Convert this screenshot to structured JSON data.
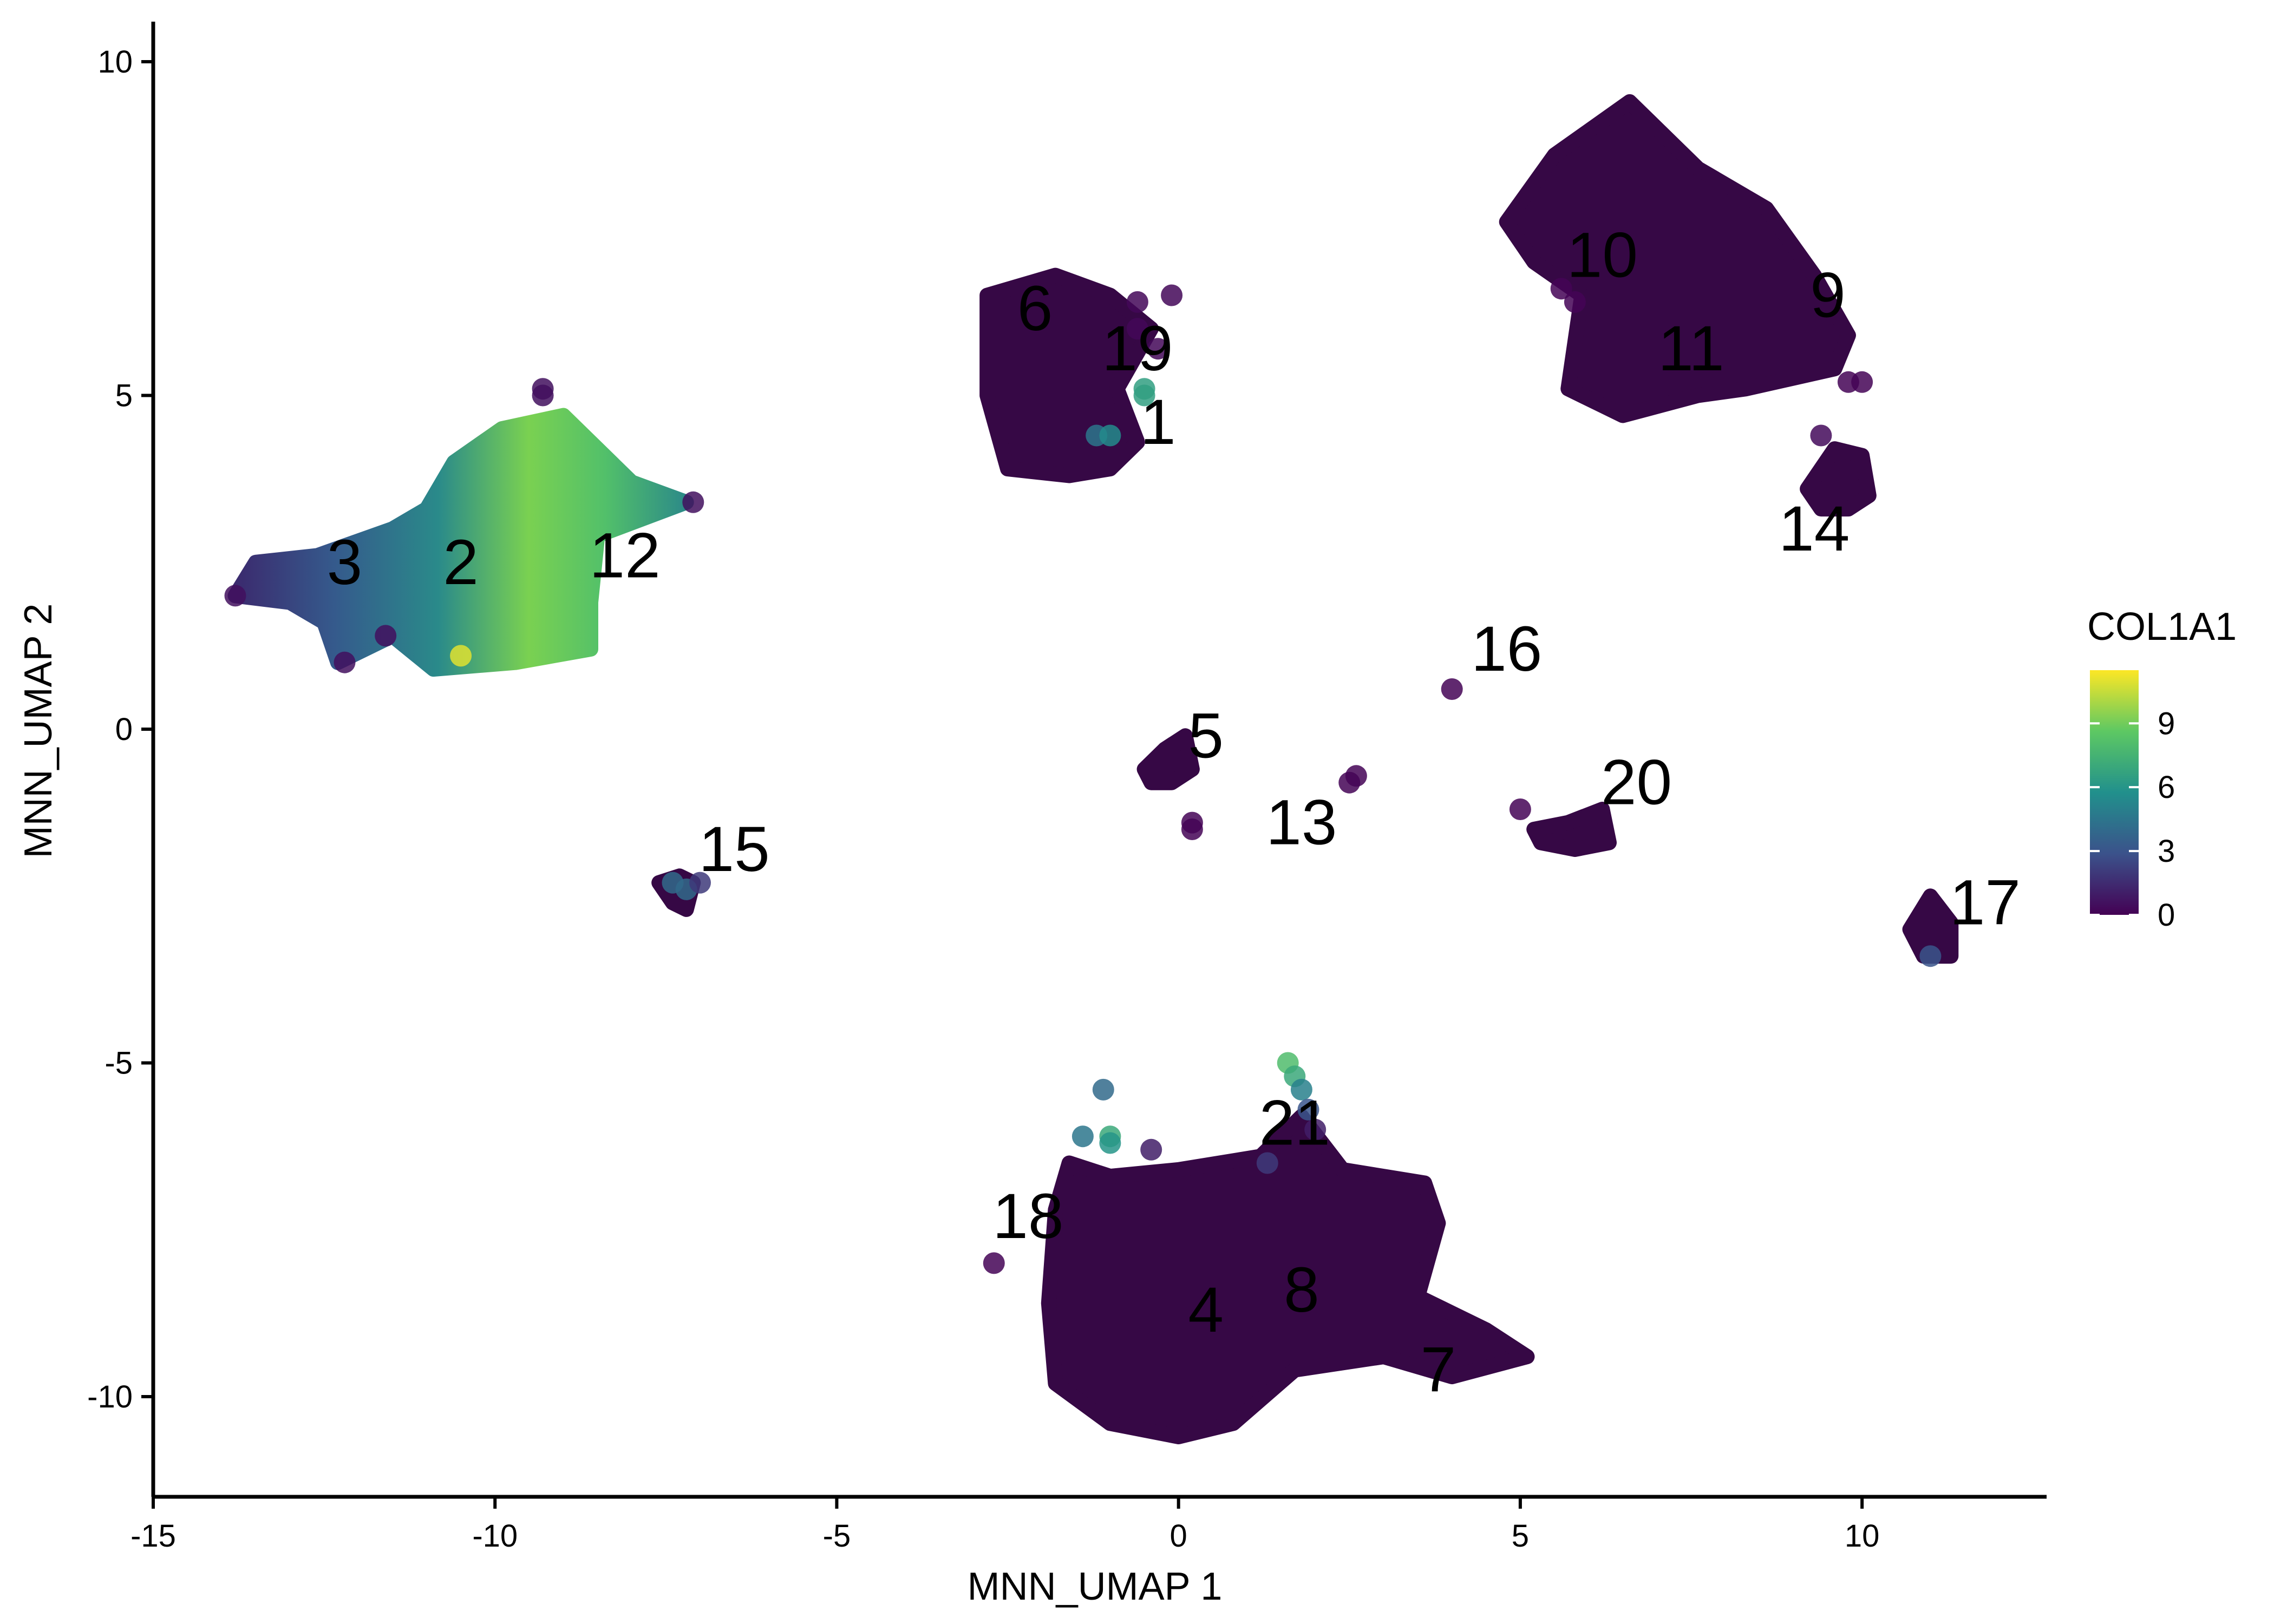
{
  "chart_data": {
    "type": "scatter",
    "xlabel": "MNN_UMAP 1",
    "ylabel": "MNN_UMAP 2",
    "xlim": [
      -15,
      12.7
    ],
    "ylim": [
      -11.5,
      10.6
    ],
    "x_ticks": [
      -15,
      -10,
      -5,
      0,
      5,
      10
    ],
    "y_ticks": [
      -10,
      -5,
      0,
      5,
      10
    ],
    "x_tick_labels": [
      "-15",
      "-10",
      "-5",
      "0",
      "5",
      "10"
    ],
    "y_tick_labels": [
      "-10",
      "-5",
      "0",
      "5",
      "10"
    ],
    "grid": false,
    "legend": {
      "title": "COL1A1",
      "placement": "right",
      "min": 0,
      "max": 11.5,
      "ticks": [
        0,
        3,
        6,
        9
      ],
      "tick_labels": [
        "0",
        "3",
        "6",
        "9"
      ],
      "colors": [
        "#440154",
        "#3b528b",
        "#21908c",
        "#5dc863",
        "#fde725"
      ]
    },
    "clusters": [
      {
        "label": "1",
        "x": -0.3,
        "y": 4.6,
        "expr": 0.5
      },
      {
        "label": "2",
        "x": -10.5,
        "y": 2.5,
        "expr": 8.0
      },
      {
        "label": "3",
        "x": -12.2,
        "y": 2.5,
        "expr": 2.5
      },
      {
        "label": "4",
        "x": 0.4,
        "y": -8.7,
        "expr": 0.1
      },
      {
        "label": "5",
        "x": 0.4,
        "y": -0.1,
        "expr": 0.1
      },
      {
        "label": "6",
        "x": -2.1,
        "y": 6.3,
        "expr": 0.1
      },
      {
        "label": "7",
        "x": 3.8,
        "y": -9.6,
        "expr": 0.1
      },
      {
        "label": "8",
        "x": 1.8,
        "y": -8.4,
        "expr": 0.1
      },
      {
        "label": "9",
        "x": 9.5,
        "y": 6.5,
        "expr": 0.1
      },
      {
        "label": "10",
        "x": 6.2,
        "y": 7.1,
        "expr": 0.1
      },
      {
        "label": "11",
        "x": 7.5,
        "y": 5.7,
        "expr": 0.1
      },
      {
        "label": "12",
        "x": -8.1,
        "y": 2.6,
        "expr": 7.0
      },
      {
        "label": "13",
        "x": 1.8,
        "y": -1.4,
        "expr": 0.1
      },
      {
        "label": "14",
        "x": 9.3,
        "y": 3.0,
        "expr": 0.1
      },
      {
        "label": "15",
        "x": -6.5,
        "y": -1.8,
        "expr": 3.0
      },
      {
        "label": "16",
        "x": 4.8,
        "y": 1.2,
        "expr": 0.1
      },
      {
        "label": "17",
        "x": 11.8,
        "y": -2.6,
        "expr": 0.1
      },
      {
        "label": "18",
        "x": -2.2,
        "y": -7.3,
        "expr": 0.1
      },
      {
        "label": "19",
        "x": -0.6,
        "y": 5.7,
        "expr": 0.3
      },
      {
        "label": "20",
        "x": 6.7,
        "y": -0.8,
        "expr": 0.1
      },
      {
        "label": "21",
        "x": 1.7,
        "y": -5.9,
        "expr": 1.0
      }
    ],
    "regions": [
      {
        "cluster": "2/3/12",
        "color_mode": "gradient_col1a1",
        "polygon": [
          [
            -13.8,
            2.0
          ],
          [
            -13.5,
            2.5
          ],
          [
            -12.6,
            2.6
          ],
          [
            -11.5,
            3.0
          ],
          [
            -11.0,
            3.3
          ],
          [
            -10.6,
            4.0
          ],
          [
            -9.9,
            4.5
          ],
          [
            -9.0,
            4.7
          ],
          [
            -8.0,
            3.7
          ],
          [
            -7.2,
            3.4
          ],
          [
            -8.5,
            2.9
          ],
          [
            -8.6,
            1.9
          ],
          [
            -8.6,
            1.2
          ],
          [
            -9.7,
            1.0
          ],
          [
            -10.9,
            0.9
          ],
          [
            -11.5,
            1.4
          ],
          [
            -12.3,
            1.0
          ],
          [
            -12.5,
            1.6
          ],
          [
            -13.0,
            1.9
          ]
        ]
      },
      {
        "cluster": "6/19/1",
        "polygon": [
          [
            -2.8,
            5.0
          ],
          [
            -2.8,
            6.5
          ],
          [
            -1.8,
            6.8
          ],
          [
            -1.0,
            6.5
          ],
          [
            -0.4,
            6.0
          ],
          [
            -0.9,
            5.1
          ],
          [
            -0.6,
            4.3
          ],
          [
            -1.0,
            3.9
          ],
          [
            -1.6,
            3.8
          ],
          [
            -2.5,
            3.9
          ]
        ]
      },
      {
        "cluster": "10/11/9",
        "polygon": [
          [
            4.8,
            7.6
          ],
          [
            5.5,
            8.6
          ],
          [
            6.6,
            9.4
          ],
          [
            7.6,
            8.4
          ],
          [
            8.6,
            7.8
          ],
          [
            9.3,
            6.8
          ],
          [
            9.8,
            5.9
          ],
          [
            9.6,
            5.4
          ],
          [
            8.3,
            5.1
          ],
          [
            7.6,
            5.0
          ],
          [
            6.5,
            4.7
          ],
          [
            5.7,
            5.1
          ],
          [
            5.9,
            6.5
          ],
          [
            5.2,
            7.0
          ]
        ]
      },
      {
        "cluster": "4/8/7/18/21",
        "polygon": [
          [
            -1.6,
            -6.5
          ],
          [
            -1.0,
            -6.7
          ],
          [
            0.0,
            -6.6
          ],
          [
            1.2,
            -6.4
          ],
          [
            1.8,
            -5.8
          ],
          [
            2.4,
            -6.6
          ],
          [
            3.6,
            -6.8
          ],
          [
            3.8,
            -7.4
          ],
          [
            3.5,
            -8.5
          ],
          [
            4.5,
            -9.0
          ],
          [
            5.1,
            -9.4
          ],
          [
            4.0,
            -9.7
          ],
          [
            3.0,
            -9.4
          ],
          [
            1.7,
            -9.6
          ],
          [
            0.8,
            -10.4
          ],
          [
            0.0,
            -10.6
          ],
          [
            -1.0,
            -10.4
          ],
          [
            -1.8,
            -9.8
          ],
          [
            -1.9,
            -8.6
          ],
          [
            -1.8,
            -7.2
          ]
        ]
      },
      {
        "cluster": "14",
        "polygon": [
          [
            9.2,
            3.6
          ],
          [
            9.6,
            4.2
          ],
          [
            10.0,
            4.1
          ],
          [
            10.1,
            3.5
          ],
          [
            9.8,
            3.3
          ],
          [
            9.4,
            3.3
          ]
        ]
      },
      {
        "cluster": "17",
        "polygon": [
          [
            10.7,
            -3.0
          ],
          [
            11.0,
            -2.5
          ],
          [
            11.3,
            -2.9
          ],
          [
            11.3,
            -3.4
          ],
          [
            10.9,
            -3.4
          ]
        ]
      },
      {
        "cluster": "20",
        "polygon": [
          [
            5.2,
            -1.5
          ],
          [
            5.7,
            -1.4
          ],
          [
            6.2,
            -1.2
          ],
          [
            6.3,
            -1.7
          ],
          [
            5.8,
            -1.8
          ],
          [
            5.3,
            -1.7
          ]
        ]
      },
      {
        "cluster": "5",
        "polygon": [
          [
            -0.5,
            -0.6
          ],
          [
            -0.2,
            -0.3
          ],
          [
            0.1,
            -0.1
          ],
          [
            0.2,
            -0.6
          ],
          [
            -0.1,
            -0.8
          ],
          [
            -0.4,
            -0.8
          ]
        ]
      },
      {
        "cluster": "15",
        "polygon": [
          [
            -7.6,
            -2.3
          ],
          [
            -7.3,
            -2.2
          ],
          [
            -7.1,
            -2.3
          ],
          [
            -7.2,
            -2.7
          ],
          [
            -7.4,
            -2.6
          ]
        ]
      }
    ],
    "points": [
      {
        "x": -13.8,
        "y": 2.0,
        "expr": 0.5
      },
      {
        "x": -9.3,
        "y": 5.1,
        "expr": 0.5
      },
      {
        "x": -9.3,
        "y": 5.0,
        "expr": 0.5
      },
      {
        "x": -10.5,
        "y": 1.1,
        "expr": 11.0
      },
      {
        "x": -12.2,
        "y": 1.0,
        "expr": 0.5
      },
      {
        "x": -11.6,
        "y": 1.4,
        "expr": 0.5
      },
      {
        "x": -7.1,
        "y": 3.4,
        "expr": 0.5
      },
      {
        "x": -0.5,
        "y": 5.1,
        "expr": 6.5
      },
      {
        "x": -0.5,
        "y": 5.0,
        "expr": 6.5
      },
      {
        "x": -1.2,
        "y": 4.4,
        "expr": 4.5
      },
      {
        "x": -1.0,
        "y": 4.4,
        "expr": 5.5
      },
      {
        "x": -0.1,
        "y": 6.5,
        "expr": 0.2
      },
      {
        "x": -0.6,
        "y": 6.4,
        "expr": 0.2
      },
      {
        "x": -0.3,
        "y": 5.7,
        "expr": 0.2
      },
      {
        "x": -0.6,
        "y": 6.0,
        "expr": 0.2
      },
      {
        "x": 5.8,
        "y": 6.4,
        "expr": 0.1
      },
      {
        "x": 5.6,
        "y": 6.6,
        "expr": 0.1
      },
      {
        "x": 9.4,
        "y": 4.4,
        "expr": 0.3
      },
      {
        "x": 10.0,
        "y": 5.2,
        "expr": 0.1
      },
      {
        "x": 9.8,
        "y": 5.2,
        "expr": 0.1
      },
      {
        "x": 4.0,
        "y": 0.6,
        "expr": 0.1
      },
      {
        "x": 2.6,
        "y": -0.7,
        "expr": 0.1
      },
      {
        "x": 2.5,
        "y": -0.8,
        "expr": 0.1
      },
      {
        "x": 0.2,
        "y": -1.4,
        "expr": 0.1
      },
      {
        "x": 0.2,
        "y": -1.5,
        "expr": 0.1
      },
      {
        "x": 5.0,
        "y": -1.2,
        "expr": 0.1
      },
      {
        "x": -2.7,
        "y": -8.0,
        "expr": 0.1
      },
      {
        "x": -1.1,
        "y": -5.4,
        "expr": 4.0
      },
      {
        "x": -1.4,
        "y": -6.1,
        "expr": 4.5
      },
      {
        "x": -1.0,
        "y": -6.1,
        "expr": 7.0
      },
      {
        "x": -1.0,
        "y": -6.2,
        "expr": 6.0
      },
      {
        "x": 1.6,
        "y": -5.0,
        "expr": 8.0
      },
      {
        "x": 1.7,
        "y": -5.2,
        "expr": 7.0
      },
      {
        "x": 1.8,
        "y": -5.4,
        "expr": 5.0
      },
      {
        "x": 1.9,
        "y": -5.7,
        "expr": 3.0
      },
      {
        "x": 2.0,
        "y": -6.0,
        "expr": 1.0
      },
      {
        "x": 1.3,
        "y": -6.5,
        "expr": 2.0
      },
      {
        "x": -0.4,
        "y": -6.3,
        "expr": 1.0
      },
      {
        "x": -7.4,
        "y": -2.3,
        "expr": 4.0
      },
      {
        "x": -7.2,
        "y": -2.4,
        "expr": 4.0
      },
      {
        "x": -7.0,
        "y": -2.3,
        "expr": 2.0
      },
      {
        "x": 11.0,
        "y": -3.4,
        "expr": 3.0
      }
    ]
  }
}
